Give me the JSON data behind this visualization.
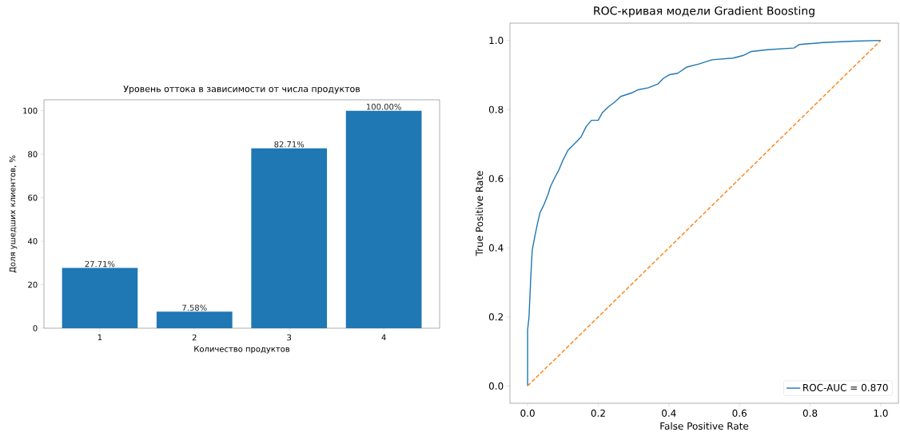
{
  "chart_data": [
    {
      "type": "bar",
      "title": "Уровень оттока в зависимости от числа продуктов",
      "xlabel": "Количество продуктов",
      "ylabel": "Доля ушедших клиентов, %",
      "categories": [
        "1",
        "2",
        "3",
        "4"
      ],
      "values": [
        27.71,
        7.58,
        82.71,
        100.0
      ],
      "value_labels": [
        "27.71%",
        "7.58%",
        "82.71%",
        "100.00%"
      ],
      "color": "#1f77b4",
      "ylim": [
        0,
        105
      ],
      "yticks": [
        0,
        20,
        40,
        60,
        80,
        100
      ]
    },
    {
      "type": "line",
      "title": "ROC-кривая модели Gradient Boosting",
      "xlabel": "False Positive Rate",
      "ylabel": "True Positive Rate",
      "legend": "bottom right",
      "xlim": [
        -0.05,
        1.05
      ],
      "ylim": [
        -0.05,
        1.05
      ],
      "xticks": [
        {
          "value": 0,
          "label": "0.0"
        },
        0.2,
        0.4,
        0.6,
        0.8,
        {
          "value": 1,
          "label": "1.0"
        }
      ],
      "yticks": [
        {
          "value": 0,
          "label": "0.0"
        },
        0.2,
        0.4,
        0.6,
        0.8,
        {
          "value": 1,
          "label": "1.0"
        }
      ],
      "series": [
        {
          "name": "ROC-AUC = 0.870",
          "color": "#1f77b4",
          "x": [
            0,
            0,
            0.004,
            0.009,
            0.013,
            0.02,
            0.028,
            0.035,
            0.046,
            0.058,
            0.065,
            0.076,
            0.088,
            0.099,
            0.114,
            0.129,
            0.151,
            0.166,
            0.181,
            0.2,
            0.211,
            0.23,
            0.245,
            0.264,
            0.297,
            0.312,
            0.342,
            0.369,
            0.384,
            0.402,
            0.425,
            0.451,
            0.485,
            0.522,
            0.582,
            0.612,
            0.634,
            0.679,
            0.754,
            0.769,
            0.837,
            0.927,
            1.0
          ],
          "values": [
            0,
            0.162,
            0.2,
            0.316,
            0.393,
            0.431,
            0.47,
            0.501,
            0.524,
            0.555,
            0.578,
            0.601,
            0.624,
            0.651,
            0.682,
            0.697,
            0.72,
            0.751,
            0.769,
            0.769,
            0.79,
            0.809,
            0.82,
            0.838,
            0.849,
            0.857,
            0.863,
            0.874,
            0.89,
            0.901,
            0.905,
            0.923,
            0.932,
            0.944,
            0.949,
            0.957,
            0.968,
            0.973,
            0.978,
            0.988,
            0.994,
            0.998,
            1.0
          ]
        },
        {
          "color": "#ff7f0e",
          "line_style": "dashed",
          "x": [
            0,
            1
          ],
          "values": [
            0,
            1
          ]
        }
      ]
    }
  ]
}
